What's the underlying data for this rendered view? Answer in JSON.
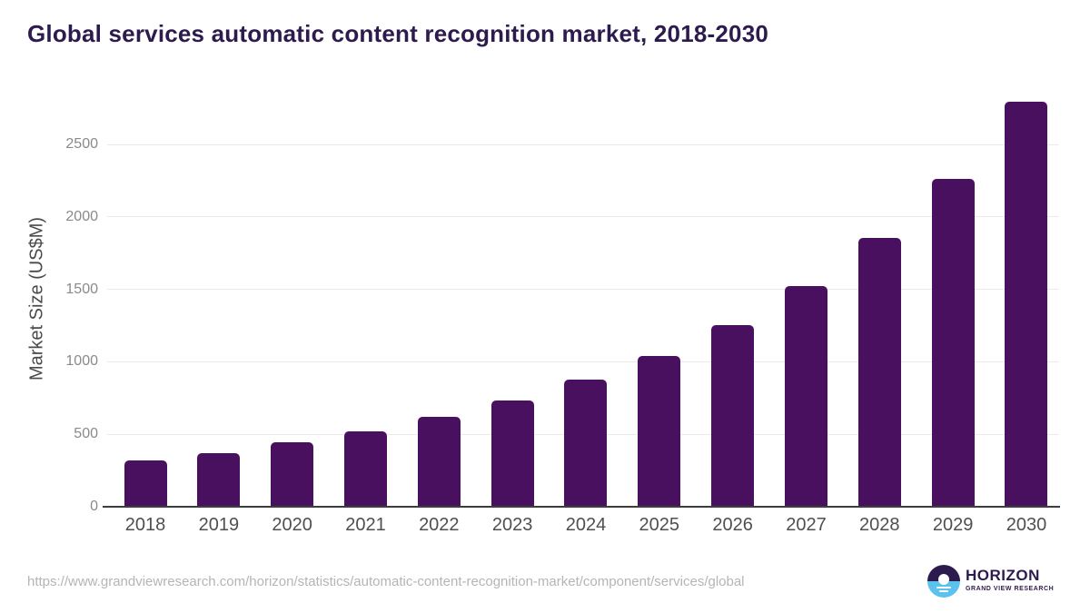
{
  "title": "Global services automatic content recognition market, 2018-2030",
  "chart_data": {
    "type": "bar",
    "categories": [
      "2018",
      "2019",
      "2020",
      "2021",
      "2022",
      "2023",
      "2024",
      "2025",
      "2026",
      "2027",
      "2028",
      "2029",
      "2030"
    ],
    "values": [
      320,
      370,
      445,
      520,
      620,
      730,
      875,
      1040,
      1255,
      1525,
      1855,
      2265,
      2795
    ],
    "title": "Global services automatic content recognition market, 2018-2030",
    "xlabel": "",
    "ylabel": "Market Size (US$M)",
    "ylim": [
      0,
      2800
    ],
    "yticks": [
      0,
      500,
      1000,
      1500,
      2000,
      2500
    ],
    "grid": true,
    "legend": "none",
    "bar_color": "#4a1060"
  },
  "colors": {
    "accent_purple": "#2d1b4e",
    "bar_purple": "#4a1060",
    "logo_blue": "#5bc2ee",
    "gridline": "#eaeaea",
    "axis_line": "#3d3d3d",
    "x_tick_text": "#4f4f4f",
    "y_tick_text": "#8a8a8a",
    "url_text": "#b5b5b5"
  },
  "footer": {
    "source_url": "https://www.grandviewresearch.com/horizon/statistics/automatic-content-recognition-market/component/services/global",
    "logo": {
      "name": "HORIZON",
      "subtitle": "GRAND VIEW RESEARCH",
      "icon": "sunrise-horizon-icon"
    }
  }
}
